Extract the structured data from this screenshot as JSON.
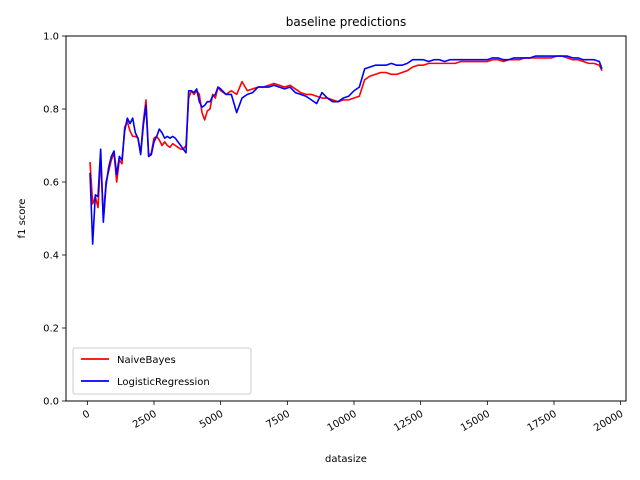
{
  "chart_data": {
    "type": "line",
    "title": "baseline predictions",
    "xlabel": "datasize",
    "ylabel": "f1 score",
    "xlim": [
      -800,
      20200
    ],
    "ylim": [
      0.0,
      1.0
    ],
    "xticks": [
      0,
      2500,
      5000,
      7500,
      10000,
      12500,
      15000,
      17500,
      20000
    ],
    "yticks": [
      0.0,
      0.2,
      0.4,
      0.6,
      0.8,
      1.0
    ],
    "grid": false,
    "legend": "lower-left",
    "series": [
      {
        "name": "NaiveBayes",
        "color": "#ff0000",
        "x": [
          100,
          200,
          300,
          400,
          500,
          600,
          700,
          800,
          900,
          1000,
          1100,
          1200,
          1300,
          1400,
          1500,
          1600,
          1700,
          1800,
          1900,
          2000,
          2100,
          2200,
          2300,
          2400,
          2500,
          2600,
          2700,
          2800,
          2900,
          3000,
          3100,
          3200,
          3300,
          3400,
          3500,
          3600,
          3700,
          3800,
          3900,
          4000,
          4100,
          4200,
          4300,
          4400,
          4500,
          4600,
          4700,
          4800,
          4900,
          5000,
          5200,
          5400,
          5600,
          5800,
          6000,
          6200,
          6400,
          6600,
          6800,
          7000,
          7200,
          7400,
          7600,
          7800,
          8000,
          8200,
          8400,
          8600,
          8800,
          9000,
          9200,
          9400,
          9600,
          9800,
          10000,
          10200,
          10400,
          10600,
          10800,
          11000,
          11200,
          11400,
          11600,
          11800,
          12000,
          12200,
          12400,
          12600,
          12800,
          13000,
          13200,
          13400,
          13600,
          13800,
          14000,
          14200,
          14400,
          14600,
          14800,
          15000,
          15200,
          15400,
          15600,
          15800,
          16000,
          16200,
          16400,
          16600,
          16800,
          17000,
          17200,
          17400,
          17600,
          17800,
          18000,
          18200,
          18400,
          18600,
          18800,
          19000,
          19200,
          19300
        ],
        "values": [
          0.655,
          0.54,
          0.56,
          0.53,
          0.67,
          0.5,
          0.6,
          0.63,
          0.66,
          0.68,
          0.6,
          0.66,
          0.65,
          0.75,
          0.765,
          0.74,
          0.725,
          0.725,
          0.72,
          0.68,
          0.765,
          0.825,
          0.67,
          0.68,
          0.72,
          0.725,
          0.715,
          0.7,
          0.71,
          0.7,
          0.695,
          0.705,
          0.7,
          0.695,
          0.69,
          0.69,
          0.7,
          0.83,
          0.85,
          0.84,
          0.85,
          0.84,
          0.79,
          0.77,
          0.795,
          0.8,
          0.84,
          0.83,
          0.86,
          0.85,
          0.84,
          0.85,
          0.84,
          0.875,
          0.85,
          0.855,
          0.86,
          0.86,
          0.865,
          0.87,
          0.865,
          0.86,
          0.865,
          0.855,
          0.845,
          0.84,
          0.84,
          0.835,
          0.83,
          0.83,
          0.825,
          0.82,
          0.825,
          0.825,
          0.83,
          0.835,
          0.88,
          0.89,
          0.895,
          0.9,
          0.9,
          0.895,
          0.895,
          0.9,
          0.905,
          0.915,
          0.92,
          0.92,
          0.925,
          0.925,
          0.925,
          0.925,
          0.925,
          0.925,
          0.93,
          0.93,
          0.93,
          0.93,
          0.93,
          0.93,
          0.935,
          0.935,
          0.93,
          0.935,
          0.935,
          0.935,
          0.94,
          0.94,
          0.94,
          0.94,
          0.94,
          0.94,
          0.945,
          0.945,
          0.94,
          0.935,
          0.935,
          0.93,
          0.925,
          0.925,
          0.92,
          0.905
        ]
      },
      {
        "name": "LogisticRegression",
        "color": "#0000ff",
        "x": [
          100,
          200,
          300,
          400,
          500,
          600,
          700,
          800,
          900,
          1000,
          1100,
          1200,
          1300,
          1400,
          1500,
          1600,
          1700,
          1800,
          1900,
          2000,
          2100,
          2200,
          2300,
          2400,
          2500,
          2600,
          2700,
          2800,
          2900,
          3000,
          3100,
          3200,
          3300,
          3400,
          3500,
          3600,
          3700,
          3800,
          3900,
          4000,
          4100,
          4200,
          4300,
          4400,
          4500,
          4600,
          4700,
          4800,
          4900,
          5000,
          5200,
          5400,
          5600,
          5800,
          6000,
          6200,
          6400,
          6600,
          6800,
          7000,
          7200,
          7400,
          7600,
          7800,
          8000,
          8200,
          8400,
          8600,
          8800,
          9000,
          9200,
          9400,
          9600,
          9800,
          10000,
          10200,
          10400,
          10600,
          10800,
          11000,
          11200,
          11400,
          11600,
          11800,
          12000,
          12200,
          12400,
          12600,
          12800,
          13000,
          13200,
          13400,
          13600,
          13800,
          14000,
          14200,
          14400,
          14600,
          14800,
          15000,
          15200,
          15400,
          15600,
          15800,
          16000,
          16200,
          16400,
          16600,
          16800,
          17000,
          17200,
          17400,
          17600,
          17800,
          18000,
          18200,
          18400,
          18600,
          18800,
          19000,
          19200,
          19300
        ],
        "values": [
          0.625,
          0.43,
          0.565,
          0.56,
          0.69,
          0.49,
          0.59,
          0.64,
          0.67,
          0.685,
          0.62,
          0.67,
          0.66,
          0.74,
          0.775,
          0.76,
          0.775,
          0.735,
          0.72,
          0.675,
          0.755,
          0.81,
          0.67,
          0.675,
          0.71,
          0.725,
          0.745,
          0.735,
          0.72,
          0.725,
          0.72,
          0.725,
          0.72,
          0.71,
          0.7,
          0.69,
          0.68,
          0.85,
          0.85,
          0.845,
          0.855,
          0.82,
          0.805,
          0.81,
          0.82,
          0.82,
          0.835,
          0.84,
          0.86,
          0.855,
          0.84,
          0.84,
          0.79,
          0.83,
          0.84,
          0.845,
          0.86,
          0.86,
          0.86,
          0.865,
          0.86,
          0.855,
          0.86,
          0.845,
          0.84,
          0.835,
          0.825,
          0.815,
          0.845,
          0.83,
          0.82,
          0.82,
          0.83,
          0.835,
          0.85,
          0.86,
          0.91,
          0.915,
          0.92,
          0.92,
          0.92,
          0.925,
          0.92,
          0.92,
          0.925,
          0.935,
          0.935,
          0.935,
          0.93,
          0.935,
          0.935,
          0.93,
          0.935,
          0.935,
          0.935,
          0.935,
          0.935,
          0.935,
          0.935,
          0.935,
          0.94,
          0.94,
          0.935,
          0.935,
          0.94,
          0.94,
          0.94,
          0.94,
          0.945,
          0.945,
          0.945,
          0.945,
          0.945,
          0.945,
          0.945,
          0.94,
          0.94,
          0.935,
          0.935,
          0.935,
          0.93,
          0.91
        ]
      }
    ]
  }
}
